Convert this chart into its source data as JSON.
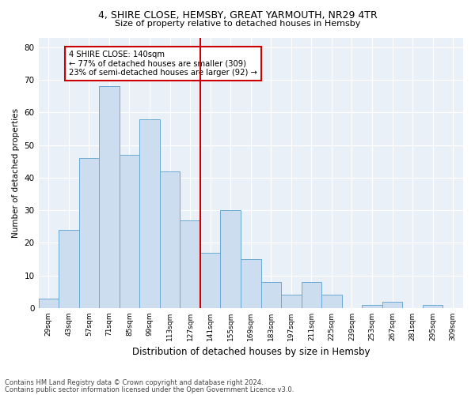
{
  "title_line1": "4, SHIRE CLOSE, HEMSBY, GREAT YARMOUTH, NR29 4TR",
  "title_line2": "Size of property relative to detached houses in Hemsby",
  "xlabel": "Distribution of detached houses by size in Hemsby",
  "ylabel": "Number of detached properties",
  "categories": [
    "29sqm",
    "43sqm",
    "57sqm",
    "71sqm",
    "85sqm",
    "99sqm",
    "113sqm",
    "127sqm",
    "141sqm",
    "155sqm",
    "169sqm",
    "183sqm",
    "197sqm",
    "211sqm",
    "225sqm",
    "239sqm",
    "253sqm",
    "267sqm",
    "281sqm",
    "295sqm",
    "309sqm"
  ],
  "values": [
    3,
    24,
    46,
    68,
    47,
    58,
    42,
    27,
    17,
    30,
    15,
    8,
    4,
    8,
    4,
    0,
    1,
    2,
    0,
    1,
    0
  ],
  "bar_color": "#ccddf0",
  "bar_edge_color": "#6aaad4",
  "vline_color": "#cc0000",
  "annotation_text": "4 SHIRE CLOSE: 140sqm\n← 77% of detached houses are smaller (309)\n23% of semi-detached houses are larger (92) →",
  "annotation_box_color": "#ffffff",
  "annotation_box_edge": "#cc0000",
  "footnote1": "Contains HM Land Registry data © Crown copyright and database right 2024.",
  "footnote2": "Contains public sector information licensed under the Open Government Licence v3.0.",
  "background_color": "#eaf0f8",
  "ylim": [
    0,
    83
  ],
  "yticks": [
    0,
    10,
    20,
    30,
    40,
    50,
    60,
    70,
    80
  ]
}
